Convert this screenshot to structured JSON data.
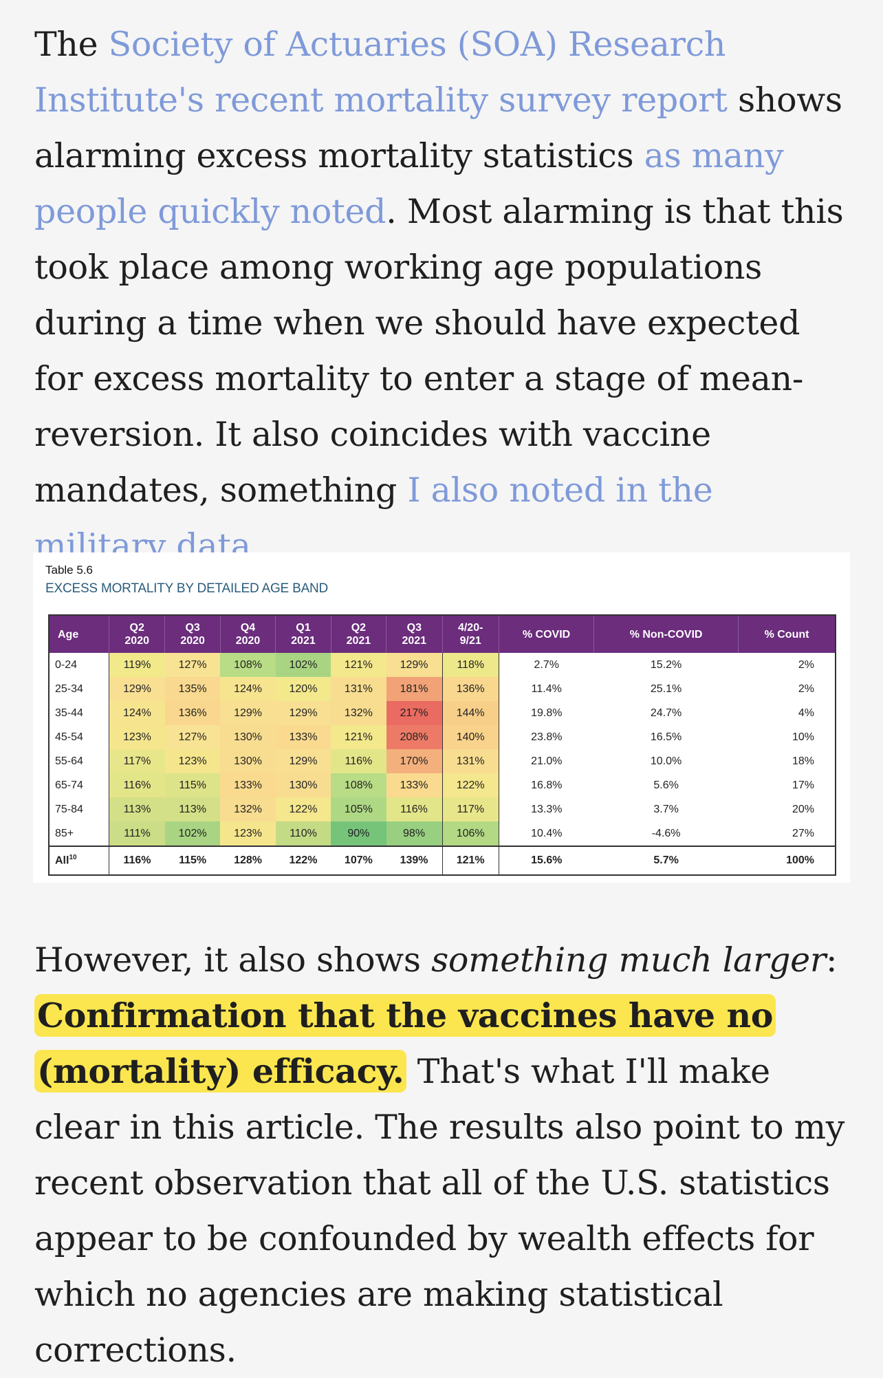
{
  "paragraph1": {
    "t1": "The ",
    "link1": "Society of Actuaries (SOA) Research Institute's recent mortality survey report",
    "t2": " shows alarming excess mortality statistics ",
    "link2": "as many people quickly noted",
    "t3": ". Most alarming is that this took place among working age populations during a time when we should have expected for excess mortality to enter a stage of mean-reversion. It also coincides with vaccine mandates, something ",
    "link3": "I also noted in the military data",
    "t4": "."
  },
  "table": {
    "number": "Table 5.6",
    "title": "EXCESS MORTALITY BY DETAILED AGE BAND",
    "headers": {
      "age": "Age",
      "q2_2020": [
        "Q2",
        "2020"
      ],
      "q3_2020": [
        "Q3",
        "2020"
      ],
      "q4_2020": [
        "Q4",
        "2020"
      ],
      "q1_2021": [
        "Q1",
        "2021"
      ],
      "q2_2021": [
        "Q2",
        "2021"
      ],
      "q3_2021": [
        "Q3",
        "2021"
      ],
      "range": [
        "4/20-",
        "9/21"
      ],
      "covid": "% COVID",
      "noncovid": "% Non-COVID",
      "count": "% Count"
    },
    "rows": [
      {
        "age": "0-24",
        "v": [
          "119%",
          "127%",
          "108%",
          "102%",
          "121%",
          "129%",
          "118%"
        ],
        "covid": "2.7%",
        "noncovid": "15.2%",
        "count": "2%",
        "colors": [
          "#f2e98a",
          "#f8e293",
          "#b9dc86",
          "#a9d583",
          "#f3e88c",
          "#f8df92",
          "#ede88a"
        ]
      },
      {
        "age": "25-34",
        "v": [
          "129%",
          "135%",
          "124%",
          "120%",
          "131%",
          "181%",
          "136%"
        ],
        "covid": "11.4%",
        "noncovid": "25.1%",
        "count": "2%",
        "colors": [
          "#f8df92",
          "#f9d98f",
          "#f7e48f",
          "#f3e88c",
          "#f8dd90",
          "#f1a277",
          "#f9d78e"
        ]
      },
      {
        "age": "35-44",
        "v": [
          "124%",
          "136%",
          "129%",
          "129%",
          "132%",
          "217%",
          "144%"
        ],
        "covid": "19.8%",
        "noncovid": "24.7%",
        "count": "4%",
        "colors": [
          "#f7e48f",
          "#f9d78e",
          "#f8df92",
          "#f8df92",
          "#f8dc90",
          "#ea6b61",
          "#f8cf89"
        ]
      },
      {
        "age": "45-54",
        "v": [
          "123%",
          "127%",
          "130%",
          "133%",
          "121%",
          "208%",
          "140%"
        ],
        "covid": "23.8%",
        "noncovid": "16.5%",
        "count": "10%",
        "colors": [
          "#f5e68e",
          "#f8e293",
          "#f8dd91",
          "#f9da8f",
          "#f3e88c",
          "#ec7a66",
          "#f9d38c"
        ]
      },
      {
        "age": "55-64",
        "v": [
          "117%",
          "123%",
          "130%",
          "129%",
          "116%",
          "170%",
          "131%"
        ],
        "covid": "21.0%",
        "noncovid": "10.0%",
        "count": "18%",
        "colors": [
          "#e8e68a",
          "#f5e68e",
          "#f8dd91",
          "#f8df92",
          "#e3e589",
          "#f3b07c",
          "#f8dd90"
        ]
      },
      {
        "age": "65-74",
        "v": [
          "116%",
          "115%",
          "133%",
          "130%",
          "108%",
          "133%",
          "122%"
        ],
        "covid": "16.8%",
        "noncovid": "5.6%",
        "count": "17%",
        "colors": [
          "#e3e589",
          "#dde388",
          "#f9da8f",
          "#f8dd91",
          "#b9dc86",
          "#f9da8f",
          "#f4e78d"
        ]
      },
      {
        "age": "75-84",
        "v": [
          "113%",
          "113%",
          "132%",
          "122%",
          "105%",
          "116%",
          "117%"
        ],
        "covid": "13.3%",
        "noncovid": "3.7%",
        "count": "20%",
        "colors": [
          "#d4e087",
          "#d4e087",
          "#f8dc90",
          "#f4e78d",
          "#afd884",
          "#e3e589",
          "#e8e68a"
        ]
      },
      {
        "age": "85+",
        "v": [
          "111%",
          "102%",
          "123%",
          "110%",
          "90%",
          "98%",
          "106%"
        ],
        "covid": "10.4%",
        "noncovid": "-4.6%",
        "count": "27%",
        "colors": [
          "#cbdd86",
          "#a9d583",
          "#f5e68e",
          "#c4db85",
          "#76c47a",
          "#98cf80",
          "#b3d984"
        ]
      }
    ],
    "all": {
      "age": "All",
      "sup": "10",
      "v": [
        "116%",
        "115%",
        "128%",
        "122%",
        "107%",
        "139%",
        "121%"
      ],
      "covid": "15.6%",
      "noncovid": "5.7%",
      "count": "100%"
    }
  },
  "paragraph2": {
    "t1": "However, it also shows ",
    "emph": "something much larger",
    "t2": ": ",
    "highlight": "Confirmation that the vaccines have no (mortality) efficacy.",
    "t3": " That's what I'll make clear in this article. The results also point to my recent observation that all of the U.S. statistics appear to be confounded by wealth effects for which no agencies are making statistical corrections."
  }
}
